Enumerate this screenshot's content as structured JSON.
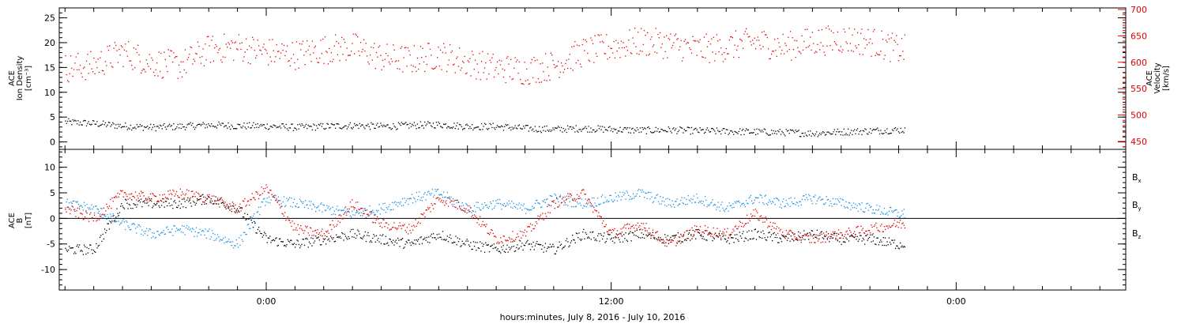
{
  "colors": {
    "black": "#000000",
    "red": "#e00000",
    "blue": "#1a8fe0"
  },
  "x_axis": {
    "title": "hours:minutes, July  8, 2016 - July 10, 2016",
    "tick_labels": [
      "0:00",
      "12:00",
      "0:00"
    ]
  },
  "chart_data": [
    {
      "type": "scatter",
      "panel": "top",
      "left_axis": {
        "title_lines": [
          "ACE",
          "Ion Density",
          "[cm⁻³]"
        ],
        "range": [
          -1.5,
          27
        ],
        "ticks": [
          0,
          5,
          10,
          15,
          20,
          25
        ]
      },
      "right_axis": {
        "title_lines": [
          "ACE",
          "Velocity",
          "[km/s]"
        ],
        "range": [
          435,
          703
        ],
        "ticks": [
          450,
          500,
          550,
          600,
          650,
          700
        ],
        "color": "#e00000"
      },
      "x_range_hours": [
        -7.2,
        29.9
      ],
      "data_end_hour": 22.2,
      "series": [
        {
          "axis": "left",
          "color": "#000000",
          "x": [
            -7,
            -6,
            -5,
            -4,
            -3,
            -2,
            -1,
            0,
            1,
            2,
            3,
            4,
            5,
            6,
            7,
            8,
            9,
            10,
            11,
            12,
            13,
            14,
            15,
            16,
            17,
            18,
            19,
            20,
            21,
            22
          ],
          "y": [
            4.1,
            3.8,
            3.3,
            3.0,
            3.2,
            3.5,
            3.3,
            3.3,
            3.0,
            3.2,
            3.4,
            3.2,
            3.4,
            3.6,
            3.2,
            3.2,
            2.8,
            2.6,
            2.8,
            2.6,
            2.4,
            2.5,
            2.3,
            2.2,
            2.1,
            2.0,
            1.8,
            2.1,
            2.3,
            2.5
          ]
        },
        {
          "axis": "right",
          "color": "#e00000",
          "x": [
            -7,
            -6,
            -5,
            -4,
            -3,
            -2,
            -1,
            0,
            1,
            2,
            3,
            4,
            5,
            6,
            7,
            8,
            9,
            10,
            11,
            12,
            13,
            14,
            15,
            16,
            17,
            18,
            19,
            20,
            21,
            22
          ],
          "y": [
            590,
            595,
            620,
            600,
            595,
            625,
            630,
            620,
            615,
            625,
            630,
            610,
            605,
            615,
            600,
            590,
            585,
            595,
            620,
            630,
            640,
            635,
            625,
            630,
            640,
            630,
            640,
            645,
            640,
            625
          ]
        }
      ]
    },
    {
      "type": "scatter",
      "panel": "bottom",
      "left_axis": {
        "title_lines": [
          "ACE",
          "B",
          "[nT]"
        ],
        "range": [
          -14,
          13.5
        ],
        "ticks": [
          -10,
          -5,
          0,
          5,
          10
        ]
      },
      "legend": [
        {
          "label": "B",
          "sub": "x",
          "color": "#000000"
        },
        {
          "label": "B",
          "sub": "y",
          "color": "#1a8fe0"
        },
        {
          "label": "B",
          "sub": "z",
          "color": "#e00000"
        }
      ],
      "zero_line": 0,
      "x_range_hours": [
        -7.2,
        29.9
      ],
      "data_end_hour": 22.2,
      "series": [
        {
          "name": "Bx",
          "color": "#000000",
          "x": [
            -7,
            -6,
            -5,
            -4,
            -3,
            -2,
            -1,
            0,
            1,
            2,
            3,
            4,
            5,
            6,
            7,
            8,
            9,
            10,
            11,
            12,
            13,
            14,
            15,
            16,
            17,
            18,
            19,
            20,
            21,
            22
          ],
          "y": [
            -6,
            -6,
            3,
            3,
            3,
            4,
            2,
            -4,
            -5,
            -4,
            -3,
            -4,
            -5,
            -3,
            -5,
            -6,
            -5,
            -6,
            -3,
            -4,
            -3,
            -4,
            -3,
            -4,
            -3,
            -4,
            -3,
            -4,
            -4,
            -5
          ]
        },
        {
          "name": "By",
          "color": "#1a8fe0",
          "x": [
            -7,
            -6,
            -5,
            -4,
            -3,
            -2,
            -1,
            0,
            1,
            2,
            3,
            4,
            5,
            6,
            7,
            8,
            9,
            10,
            11,
            12,
            13,
            14,
            15,
            16,
            17,
            18,
            19,
            20,
            21,
            22
          ],
          "y": [
            3,
            2,
            -1,
            -3,
            -2,
            -3,
            -5,
            4,
            3,
            2,
            1,
            2,
            4,
            5,
            2,
            3,
            2,
            4,
            3,
            4,
            5,
            3,
            4,
            2,
            4,
            3,
            4,
            3,
            2,
            1
          ]
        },
        {
          "name": "Bz",
          "color": "#e00000",
          "x": [
            -7,
            -6,
            -5,
            -4,
            -3,
            -2,
            -1,
            0,
            1,
            2,
            3,
            4,
            5,
            6,
            7,
            8,
            9,
            10,
            11,
            12,
            13,
            14,
            15,
            16,
            17,
            18,
            19,
            20,
            21,
            22
          ],
          "y": [
            2,
            0,
            5,
            4,
            5,
            4,
            2,
            6,
            -2,
            -3,
            3,
            -1,
            -2,
            4,
            2,
            -4,
            -3,
            3,
            5,
            -3,
            -1,
            -5,
            -2,
            -3,
            1,
            -3,
            -4,
            -3,
            -2,
            -1
          ]
        }
      ]
    }
  ]
}
